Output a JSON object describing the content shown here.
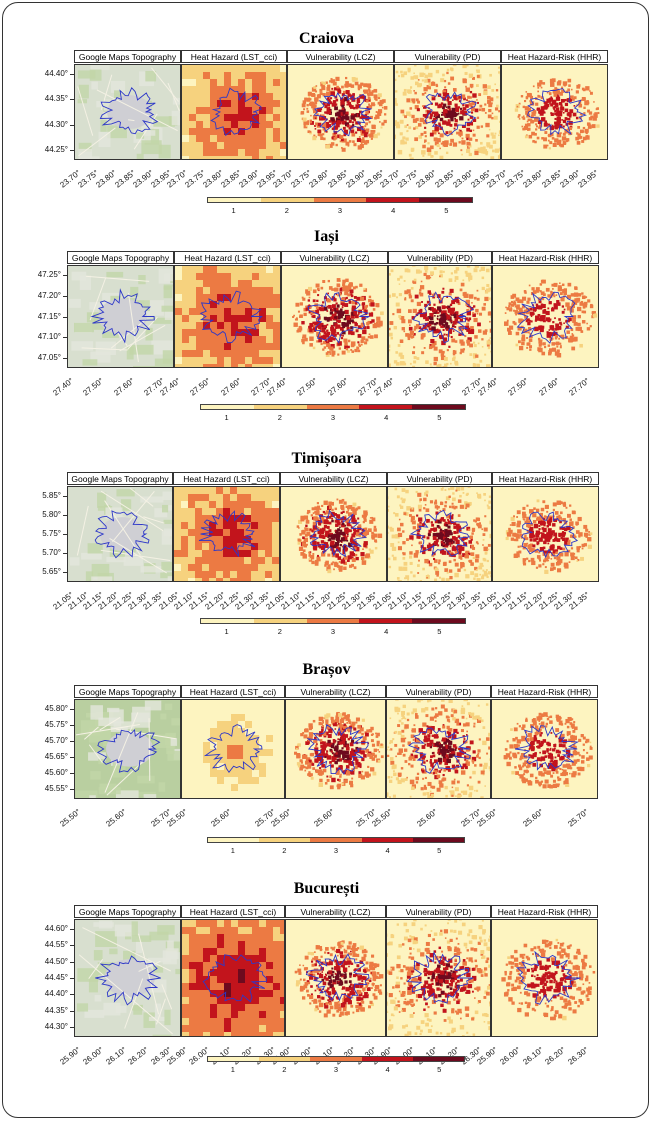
{
  "panel_titles": [
    "Google Maps Topography",
    "Heat Hazard (LST_cci)",
    "Vulnerability (LCZ)",
    "Vulnerability (PD)",
    "Heat Hazard-Risk (HHR)"
  ],
  "legend": {
    "labels": [
      "1",
      "2",
      "3",
      "4",
      "5"
    ],
    "colors": [
      "#fdf4c0",
      "#f6d27e",
      "#ec7a43",
      "#c2141c",
      "#6d0a1e"
    ]
  },
  "cities": [
    {
      "name": "Craiova",
      "y_labels": [
        "44.40°",
        "44.35°",
        "44.30°",
        "44.25°"
      ],
      "x_labels": [
        "23.70°",
        "23.75°",
        "23.80°",
        "23.85°",
        "23.90°",
        "23.95°"
      ]
    },
    {
      "name": "Iași",
      "y_labels": [
        "47.25°",
        "47.20°",
        "47.15°",
        "47.10°",
        "47.05°"
      ],
      "x_labels": [
        "27.40°",
        "27.50°",
        "27.60°",
        "27.70°"
      ]
    },
    {
      "name": "Timișoara",
      "y_labels": [
        "5.85°",
        "5.80°",
        "5.75°",
        "5.70°",
        "5.65°"
      ],
      "x_labels": [
        "21.05°",
        "21.10°",
        "21.15°",
        "21.20°",
        "21.25°",
        "21.30°",
        "21.35°"
      ]
    },
    {
      "name": "Brașov",
      "y_labels": [
        "45.80°",
        "45.75°",
        "45.70°",
        "45.65°",
        "45.60°",
        "45.55°"
      ],
      "x_labels": [
        "25.50°",
        "25.60°",
        "25.70°"
      ]
    },
    {
      "name": "București",
      "y_labels": [
        "44.60°",
        "44.55°",
        "44.50°",
        "44.45°",
        "44.40°",
        "44.35°",
        "44.30°"
      ],
      "x_labels": [
        "25.90°",
        "26.00°",
        "26.10°",
        "26.20°",
        "26.30°"
      ]
    }
  ]
}
